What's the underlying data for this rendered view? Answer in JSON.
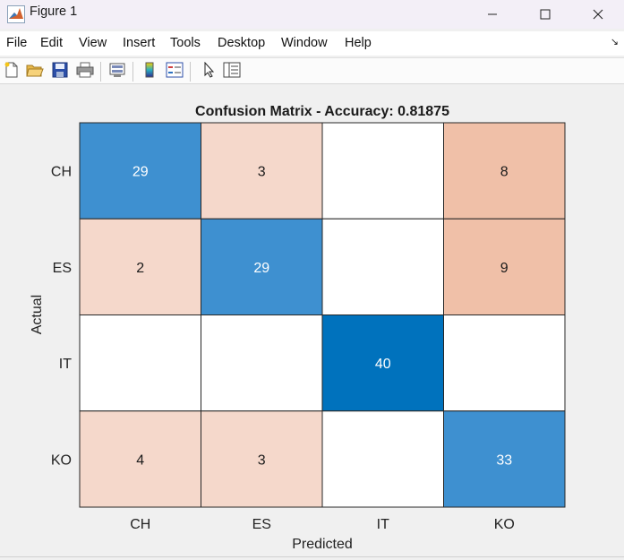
{
  "window": {
    "title": "Figure 1"
  },
  "menu": {
    "items": [
      "File",
      "Edit",
      "View",
      "Insert",
      "Tools",
      "Desktop",
      "Window",
      "Help"
    ]
  },
  "toolbar": {
    "icons": [
      "new-figure-icon",
      "open-file-icon",
      "save-icon",
      "print-icon",
      "link-plot-icon",
      "colorbar-icon",
      "legend-icon",
      "edit-plot-icon",
      "property-inspector-icon"
    ]
  },
  "colors": {
    "diag_light": "#3e90d0",
    "diag_dark": "#0072bd",
    "offdiag_light": "#f5d8cb",
    "offdiag_dark": "#f0c0a8",
    "empty": "#ffffff"
  },
  "chart_data": {
    "type": "heatmap",
    "title": "Confusion Matrix - Accuracy: 0.81875",
    "xlabel": "Predicted",
    "ylabel": "Actual",
    "x_categories": [
      "CH",
      "ES",
      "IT",
      "KO"
    ],
    "y_categories": [
      "CH",
      "ES",
      "IT",
      "KO"
    ],
    "values": [
      [
        29,
        3,
        null,
        8
      ],
      [
        2,
        29,
        null,
        9
      ],
      [
        null,
        null,
        40,
        null
      ],
      [
        4,
        3,
        null,
        33
      ]
    ],
    "grid": true
  }
}
